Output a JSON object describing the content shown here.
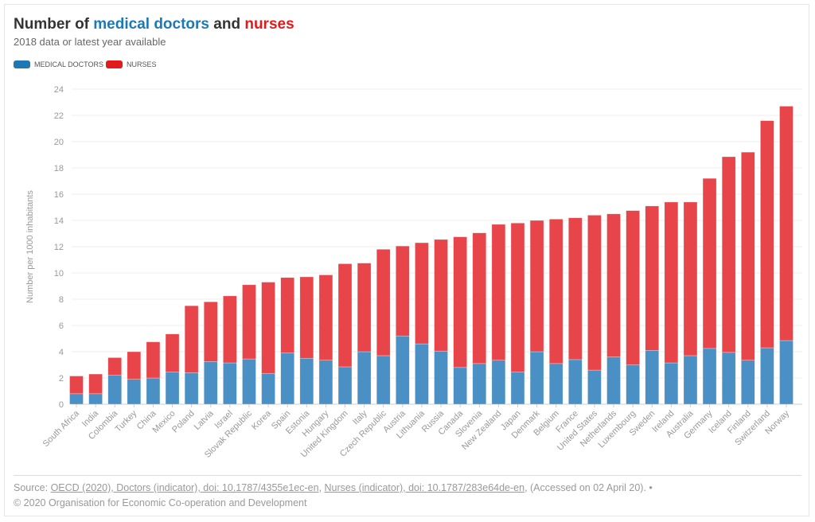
{
  "title": {
    "part1": "Number of ",
    "part2": "medical doctors",
    "part3": " and ",
    "part4": "nurses"
  },
  "subtitle": "2018 data or latest year available",
  "colors": {
    "doctors": "#4a90c4",
    "nurses": "#e8454a",
    "doctors_title": "#1f78b4",
    "nurses_title": "#e31a1c"
  },
  "legend": {
    "doctors": "MEDICAL DOCTORS",
    "nurses": "NURSES"
  },
  "source": {
    "prefix": "Source: ",
    "link1": "OECD (2020), Doctors (indicator), doi: 10.1787/4355e1ec-en",
    "sep": ", ",
    "link2": "Nurses (indicator), doi: 10.1787/283e64de-en",
    "suffix": ", (Accessed on 02 April 20). •"
  },
  "copyright": "© 2020 Organisation for Economic Co-operation and Development",
  "chart_data": {
    "type": "bar",
    "stacked": true,
    "ylabel": "Number per 1000 inhabitants",
    "ylim": [
      0,
      24
    ],
    "yticks": [
      0,
      2,
      4,
      6,
      8,
      10,
      12,
      14,
      16,
      18,
      20,
      22,
      24
    ],
    "grid": true,
    "legend_position": "top-left",
    "categories": [
      "South Africa",
      "India",
      "Colombia",
      "Turkey",
      "China",
      "Mexico",
      "Poland",
      "Latvia",
      "Israel",
      "Slovak Republic",
      "Korea",
      "Spain",
      "Estonia",
      "Hungary",
      "United Kingdom",
      "Italy",
      "Czech Republic",
      "Austria",
      "Lithuania",
      "Russia",
      "Canada",
      "Slovenia",
      "New Zealand",
      "Japan",
      "Denmark",
      "Belgium",
      "France",
      "United States",
      "Netherlands",
      "Luxembourg",
      "Sweden",
      "Ireland",
      "Australia",
      "Germany",
      "Iceland",
      "Finland",
      "Switzerland",
      "Norway"
    ],
    "series": [
      {
        "name": "MEDICAL DOCTORS",
        "values": [
          0.8,
          0.8,
          2.2,
          1.9,
          2.0,
          2.45,
          2.4,
          3.25,
          3.15,
          3.45,
          2.35,
          3.9,
          3.5,
          3.35,
          2.85,
          4.0,
          3.7,
          5.2,
          4.6,
          4.05,
          2.8,
          3.1,
          3.35,
          2.45,
          4.0,
          3.1,
          3.4,
          2.6,
          3.6,
          3.0,
          4.1,
          3.15,
          3.7,
          4.25,
          3.95,
          3.35,
          4.3,
          4.85
        ]
      },
      {
        "name": "NURSES",
        "values": [
          1.35,
          1.5,
          1.35,
          2.1,
          2.75,
          2.9,
          5.1,
          4.55,
          5.1,
          5.65,
          6.95,
          5.75,
          6.2,
          6.5,
          7.85,
          6.75,
          8.1,
          6.85,
          7.7,
          8.5,
          9.95,
          9.95,
          10.35,
          11.35,
          10.0,
          11.0,
          10.8,
          11.8,
          10.9,
          11.75,
          11.0,
          12.25,
          11.7,
          12.95,
          14.9,
          15.85,
          17.3,
          17.85
        ]
      }
    ]
  }
}
